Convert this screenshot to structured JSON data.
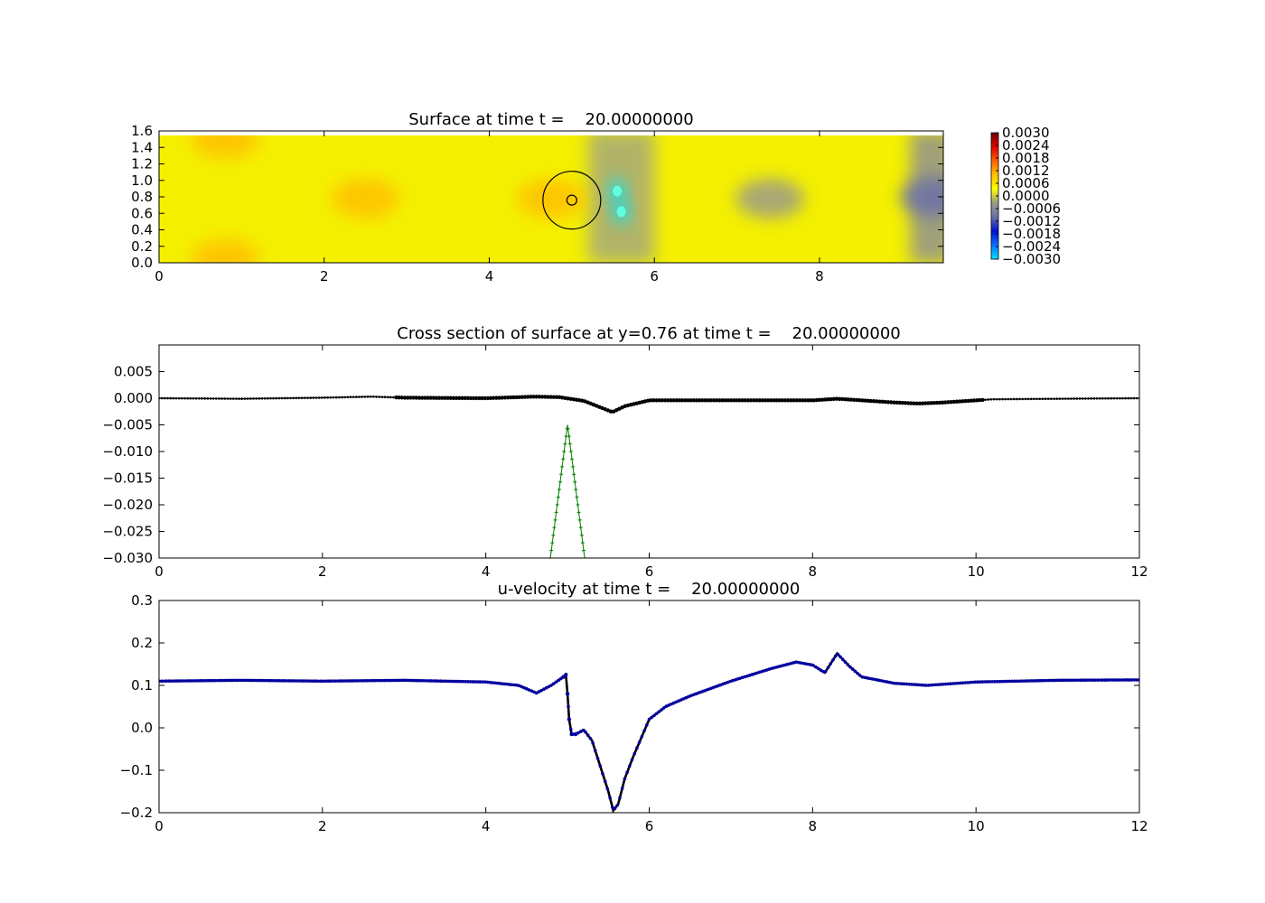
{
  "chart_data": [
    {
      "type": "heatmap",
      "title": "Surface at time t =    20.00000000",
      "xlim": [
        0,
        9.5
      ],
      "ylim": [
        0,
        1.6
      ],
      "xticks": [
        "0",
        "2",
        "4",
        "6",
        "8"
      ],
      "yticks": [
        "0.0",
        "0.2",
        "0.4",
        "0.6",
        "0.8",
        "1.0",
        "1.2",
        "1.4",
        "1.6"
      ],
      "colorbar": {
        "range": [
          -0.003,
          0.003
        ],
        "ticks": [
          "0.0030",
          "0.0024",
          "0.0018",
          "0.0012",
          "0.0006",
          "0.0000",
          "−0.0006",
          "−0.0012",
          "−0.0018",
          "−0.0024",
          "−0.0030"
        ]
      },
      "colormap": [
        "#00e5ff",
        "#0a70ff",
        "#0010d0",
        "#6a70a8",
        "#9c9c88",
        "#ffff00",
        "#ffc000",
        "#ff6000",
        "#e00000",
        "#700000"
      ],
      "cylinder": {
        "x": 5.0,
        "y": 0.76,
        "r": 0.35
      },
      "features": [
        {
          "x": 0.8,
          "y": 1.5,
          "value": 0.0008
        },
        {
          "x": 0.8,
          "y": 0.05,
          "value": 0.0008
        },
        {
          "x": 2.5,
          "y": 0.78,
          "value": 0.0009
        },
        {
          "x": 4.75,
          "y": 0.78,
          "value": 0.001
        },
        {
          "x": 5.55,
          "y": 0.87,
          "value": -0.0028
        },
        {
          "x": 5.6,
          "y": 0.62,
          "value": -0.0027
        },
        {
          "x": 7.4,
          "y": 0.78,
          "value": -0.0005
        },
        {
          "x": 9.4,
          "y": 0.8,
          "value": -0.0012
        }
      ]
    },
    {
      "type": "line",
      "title": "Cross section of surface at y=0.76 at time t =    20.00000000",
      "xlim": [
        0,
        12
      ],
      "ylim": [
        -0.03,
        0.01
      ],
      "xticks": [
        "0",
        "2",
        "4",
        "6",
        "8",
        "10",
        "12"
      ],
      "yticks": [
        "−0.030",
        "−0.025",
        "−0.020",
        "−0.015",
        "−0.010",
        "−0.005",
        "0.000",
        "0.005"
      ],
      "series": [
        {
          "color": "#000000",
          "x": [
            0,
            1,
            2,
            2.6,
            3,
            4,
            4.6,
            4.9,
            5.2,
            5.45,
            5.55,
            5.7,
            6,
            7,
            8,
            8.3,
            8.6,
            9,
            9.3,
            9.6,
            10,
            10.2,
            11,
            12
          ],
          "y": [
            0,
            -0.0001,
            0.0001,
            0.0003,
            0.0001,
            0,
            0.0003,
            0.0002,
            -0.0005,
            -0.002,
            -0.0026,
            -0.0015,
            -0.0004,
            -0.0004,
            -0.0004,
            -0.0001,
            -0.0004,
            -0.0008,
            -0.001,
            -0.0008,
            -0.0004,
            -0.0002,
            -0.0001,
            0
          ]
        },
        {
          "color": "#008000",
          "x": [
            4.79,
            5.0,
            5.21
          ],
          "y": [
            -0.03,
            -0.005,
            -0.03
          ]
        }
      ]
    },
    {
      "type": "scatter",
      "title": "u-velocity at time t =    20.00000000",
      "xlim": [
        0,
        12
      ],
      "ylim": [
        -0.2,
        0.3
      ],
      "xticks": [
        "0",
        "2",
        "4",
        "6",
        "8",
        "10",
        "12"
      ],
      "yticks": [
        "−0.2",
        "−0.1",
        "0.0",
        "0.1",
        "0.2",
        "0.3"
      ],
      "series": [
        {
          "color": "#0000a0",
          "x": [
            0,
            1,
            2,
            3,
            4,
            4.4,
            4.62,
            4.8,
            4.95,
            4.98,
            5.0,
            5.02,
            5.05,
            5.1,
            5.2,
            5.3,
            5.4,
            5.5,
            5.56,
            5.62,
            5.7,
            5.8,
            6.0,
            6.2,
            6.5,
            7.0,
            7.5,
            7.8,
            8.0,
            8.15,
            8.3,
            8.45,
            8.6,
            9.0,
            9.4,
            10,
            11,
            12
          ],
          "y": [
            0.11,
            0.112,
            0.11,
            0.112,
            0.108,
            0.1,
            0.082,
            0.1,
            0.12,
            0.125,
            0.08,
            0.02,
            -0.015,
            -0.015,
            -0.005,
            -0.03,
            -0.09,
            -0.15,
            -0.195,
            -0.18,
            -0.12,
            -0.07,
            0.02,
            0.05,
            0.075,
            0.11,
            0.14,
            0.155,
            0.148,
            0.13,
            0.175,
            0.145,
            0.12,
            0.105,
            0.1,
            0.108,
            0.112,
            0.113
          ]
        }
      ]
    }
  ]
}
